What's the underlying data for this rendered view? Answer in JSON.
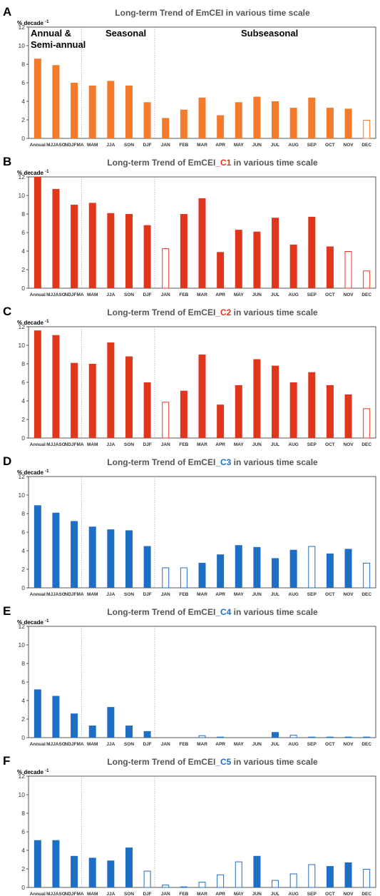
{
  "categories": [
    "Annual",
    "MJJASO",
    "NDJFMA",
    "MAM",
    "JJA",
    "SON",
    "DJF",
    "JAN",
    "FEB",
    "MAR",
    "APR",
    "MAY",
    "JUN",
    "JUL",
    "AUG",
    "SEP",
    "OCT",
    "NOV",
    "DEC"
  ],
  "group_labels": [
    "Annual &",
    "Semi-annual",
    "Seasonal",
    "Subseasonal"
  ],
  "y_unit": "% decade",
  "y_unit_sup": "-1",
  "colors": {
    "orange": "#f47b2a",
    "red": "#e0361c",
    "blue": "#1f6ec5"
  },
  "chart_data": [
    {
      "panel": "A",
      "type": "bar",
      "title": "Long-term Trend of EmCEI in various time scale",
      "title_suffix": "",
      "color": "orange",
      "ylim": [
        0,
        12
      ],
      "yticks": [
        0,
        2,
        4,
        6,
        8,
        10,
        12
      ],
      "values": [
        8.6,
        7.9,
        6.0,
        5.7,
        6.2,
        5.7,
        3.9,
        2.2,
        3.1,
        4.4,
        2.5,
        3.9,
        4.5,
        4.0,
        3.3,
        4.4,
        3.3,
        3.2,
        2.0
      ],
      "hollow": [
        false,
        false,
        false,
        false,
        false,
        false,
        false,
        false,
        false,
        false,
        false,
        false,
        false,
        false,
        false,
        false,
        false,
        false,
        true
      ]
    },
    {
      "panel": "B",
      "type": "bar",
      "title": "Long-term Trend of EmCEI",
      "title_suffix": "_C1",
      "title_tail": " in various time scale",
      "color": "red",
      "ylim": [
        0,
        12
      ],
      "yticks": [
        0,
        2,
        4,
        6,
        8,
        10,
        12
      ],
      "values": [
        12.0,
        10.7,
        9.0,
        9.2,
        8.1,
        8.0,
        6.8,
        4.3,
        8.0,
        9.7,
        3.9,
        6.3,
        6.1,
        7.6,
        4.7,
        7.7,
        4.5,
        4.0,
        1.9
      ],
      "hollow": [
        false,
        false,
        false,
        false,
        false,
        false,
        false,
        true,
        false,
        false,
        false,
        false,
        false,
        false,
        false,
        false,
        false,
        true,
        true
      ]
    },
    {
      "panel": "C",
      "type": "bar",
      "title": "Long-term Trend of EmCEI",
      "title_suffix": "_C2",
      "title_tail": " in various time scale",
      "color": "red",
      "ylim": [
        0,
        12
      ],
      "yticks": [
        0,
        2,
        4,
        6,
        8,
        10,
        12
      ],
      "values": [
        11.6,
        11.1,
        8.1,
        8.0,
        10.3,
        8.8,
        6.0,
        3.9,
        5.1,
        9.0,
        3.6,
        5.7,
        8.5,
        7.8,
        6.0,
        7.1,
        5.7,
        4.7,
        3.2
      ],
      "hollow": [
        false,
        false,
        false,
        false,
        false,
        false,
        false,
        true,
        false,
        false,
        false,
        false,
        false,
        false,
        false,
        false,
        false,
        false,
        true
      ]
    },
    {
      "panel": "D",
      "type": "bar",
      "title": "Long-term Trend of EmCEI",
      "title_suffix": "_C3",
      "title_tail": " in various time scale",
      "color": "blue",
      "ylim": [
        0,
        12
      ],
      "yticks": [
        0,
        2,
        4,
        6,
        8,
        10,
        12
      ],
      "values": [
        8.9,
        8.1,
        7.2,
        6.6,
        6.3,
        6.2,
        4.5,
        2.2,
        2.2,
        2.7,
        3.6,
        4.6,
        4.4,
        3.2,
        4.1,
        4.5,
        3.7,
        4.2,
        2.7
      ],
      "hollow": [
        false,
        false,
        false,
        false,
        false,
        false,
        false,
        true,
        true,
        false,
        false,
        false,
        false,
        false,
        false,
        true,
        false,
        false,
        true
      ]
    },
    {
      "panel": "E",
      "type": "bar",
      "title": "Long-term Trend of EmCEI",
      "title_suffix": "_C4",
      "title_tail": " in various time scale",
      "color": "blue",
      "ylim": [
        0,
        12
      ],
      "yticks": [
        0,
        2,
        4,
        6,
        8,
        10,
        12
      ],
      "values": [
        5.2,
        4.5,
        2.6,
        1.3,
        3.3,
        1.3,
        0.7,
        0.0,
        0.0,
        0.25,
        0.1,
        0.0,
        0.0,
        0.6,
        0.3,
        0.1,
        0.1,
        0.1,
        0.1
      ],
      "hollow": [
        false,
        false,
        false,
        false,
        false,
        false,
        false,
        false,
        false,
        true,
        true,
        false,
        false,
        false,
        true,
        true,
        true,
        true,
        true
      ]
    },
    {
      "panel": "F",
      "type": "bar",
      "title": "Long-term Trend of EmCEI",
      "title_suffix": "_C5",
      "title_tail": " in various time scale",
      "color": "blue",
      "ylim": [
        0,
        12
      ],
      "yticks": [
        0,
        2,
        4,
        6,
        8,
        10,
        12
      ],
      "values": [
        5.1,
        5.1,
        3.4,
        3.2,
        2.9,
        4.3,
        1.8,
        0.3,
        0.1,
        0.6,
        1.4,
        2.8,
        3.4,
        0.8,
        1.5,
        2.5,
        2.3,
        2.7,
        2.0
      ],
      "hollow": [
        false,
        false,
        false,
        false,
        false,
        false,
        true,
        true,
        true,
        true,
        true,
        true,
        false,
        true,
        true,
        true,
        false,
        false,
        true
      ]
    }
  ]
}
